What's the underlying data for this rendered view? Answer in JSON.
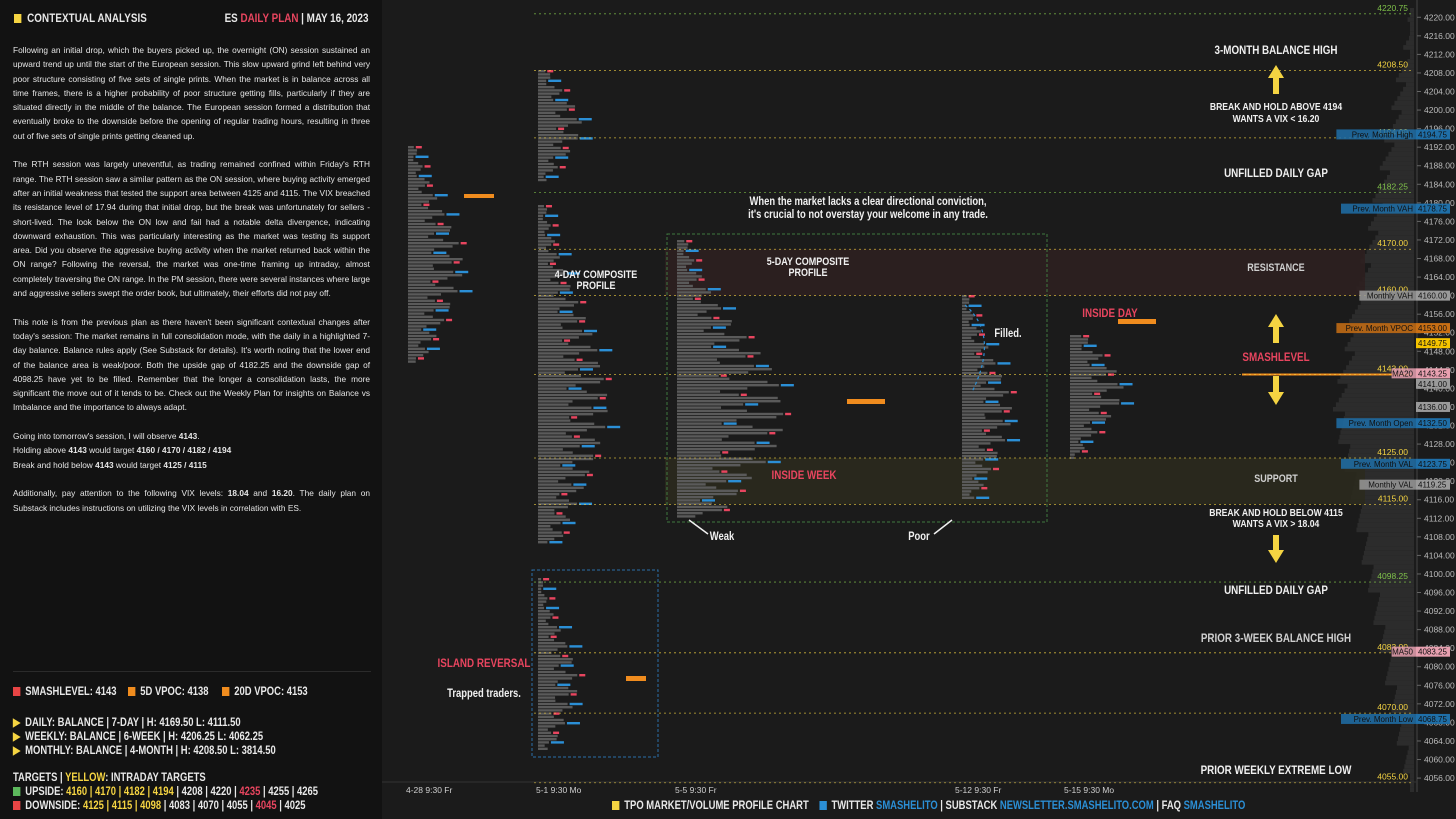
{
  "header": {
    "title": "CONTEXTUAL ANALYSIS",
    "plan_prefix": "ES",
    "plan_label": "DAILY PLAN",
    "date": "MAY 16, 2023"
  },
  "analysis": {
    "p1": "Following an initial drop, which the buyers picked up, the overnight (ON) session sustained an upward trend up until the start of the European session. This slow upward grind left behind very poor structure consisting of five sets of single prints. When the market is in balance across all time frames, there is a higher probability of poor structure getting fills, particularly if they are situated directly in the middle of the balance. The European session formed a distribution that eventually broke to the downside before the opening of regular trading hours, resulting in three out of five sets of single prints getting cleaned up.",
    "p2": "The RTH session was largely uneventful, as trading remained confined within Friday's RTH range. The RTH session saw a similar pattern as the ON session, where buying activity emerged after an initial weakness that tested the support area between 4125 and 4115. The VIX breached its resistance level of 17.94 during that initial drop, but the break was unfortunately for sellers - short-lived. The look below the ON low and fail had a notable delta divergence, indicating downward exhaustion. This was particularly interesting as the market was testing its support area. Did you observe the aggressive buying activity when the market returned back within the ON range? Following the reversal, the market was one-time framing up intraday, almost completely traversing the ON range. In the PM session, there were several instances where large and aggressive sellers swept the order book, but ultimately, their efforts did not pay off.",
    "p3": "This note is from the previous plan as there haven't been significant contextual changes after today's session: The market remains in full consolidation mode, with the daily in a highlighted 7-day balance. Balance rules apply (See Substack for details). It's worth noting that the lower end of the balance area is weak/poor. Both the upside gap of 4182.25 and the downside gap of 4098.25 have yet to be filled. Remember that the longer a consolidation lasts, the more significant the move out of it tends to be. Check out the Weekly Plan for insights on Balance vs Imbalance and the importance to always adapt.",
    "p4a": "Going into tomorrow's session, I will observe ",
    "p4a_val": "4143",
    "p4b1": "Holding above ",
    "p4b_val": "4143",
    "p4b2": " would target ",
    "p4b_targets": "4160 / 4170 / 4182 / 4194",
    "p4c1": "Break and hold below ",
    "p4c_val": "4143",
    "p4c2": " would target ",
    "p4c_targets": "4125 / 4115",
    "p5a": "Additionally, pay attention to the following VIX levels: ",
    "p5_v1": "18.04",
    "p5_and": " and ",
    "p5_v2": "16.20",
    "p5b": ". The daily plan on Substack includes instructions on utilizing the VIX levels in correlation with ES."
  },
  "legend": {
    "smashlevel": "SMASHLEVEL: 4143",
    "vpoc5": "5D VPOC: 4138",
    "vpoc20": "20D VPOC: 4153",
    "smash_color": "#e84545",
    "vpoc_color": "#f08c1e"
  },
  "balance": {
    "daily": "DAILY: BALANCE  |  7-DAY  |  H: 4169.50 L: 4111.50",
    "weekly": "WEEKLY: BALANCE  |  6-WEEK  |  H: 4206.25 L: 4062.25",
    "monthly": "MONTHLY: BALANCE  |  4-MONTH  |  H: 4208.50 L: 3814.50"
  },
  "targets": {
    "title": "TARGETS",
    "yellow_label": "YELLOW",
    "yellow_desc": ": INTRADAY TARGETS",
    "upside_label": "UPSIDE:",
    "upside_yellow": "4160  |  4170  |  4182  |  4194",
    "upside_w1": "4208  |  4220  |",
    "upside_pink": "4235",
    "upside_w2": "|  4255  |  4265",
    "downside_label": "DOWNSIDE:",
    "downside_yellow": "4125  |  4115  |  4098",
    "downside_w1": "|  4083  |  4070  |  4055  |",
    "downside_pink": "4045",
    "downside_w2": "|  4025"
  },
  "footer": {
    "chart_label": "TPO MARKET/VOLUME PROFILE CHART",
    "twitter_label": "TWITTER",
    "twitter_handle": "SMASHELITO",
    "substack_label": "SUBSTACK",
    "substack_url": "NEWSLETTER.SMASHELITO.COM",
    "faq_label": "FAQ",
    "faq_handle": "SMASHELITO"
  },
  "chart_data": {
    "type": "tpo-profile",
    "ylim": [
      4053,
      4222
    ],
    "y_ticks": [
      4056,
      4060,
      4064,
      4068,
      4072,
      4076,
      4080,
      4084,
      4088,
      4092,
      4096,
      4100,
      4104,
      4108,
      4112,
      4116,
      4120,
      4124,
      4128,
      4132,
      4136,
      4140,
      4144,
      4148,
      4152,
      4156,
      4160,
      4164,
      4168,
      4172,
      4176,
      4180,
      4184,
      4188,
      4192,
      4196,
      4200,
      4204,
      4208,
      4212,
      4216,
      4220
    ],
    "x_labels": [
      "4-28  9:30 Fr",
      "5-1  9:30 Mo",
      "5-5  9:30 Fr",
      "5-12  9:30 Fr",
      "5-15  9:30 Mo"
    ],
    "levels": [
      {
        "value": 4220.75,
        "label": "4220.75",
        "color": "#7fc14a"
      },
      {
        "value": 4208.5,
        "label": "4208.50",
        "color": "#f5d442"
      },
      {
        "value": 4194.0,
        "label": "4194.00",
        "color": "#f5d442"
      },
      {
        "value": 4182.25,
        "label": "4182.25",
        "color": "#7fc14a"
      },
      {
        "value": 4170.0,
        "label": "4170.00",
        "color": "#f5d442"
      },
      {
        "value": 4160.0,
        "label": "4160.00",
        "color": "#f5d442"
      },
      {
        "value": 4143.0,
        "label": "4143.00",
        "color": "#f5d442"
      },
      {
        "value": 4125.0,
        "label": "4125.00",
        "color": "#f5d442"
      },
      {
        "value": 4115.0,
        "label": "4115.00",
        "color": "#f5d442"
      },
      {
        "value": 4098.25,
        "label": "4098.25",
        "color": "#7fc14a"
      },
      {
        "value": 4083.0,
        "label": "4083.00",
        "color": "#f5d442"
      },
      {
        "value": 4070.0,
        "label": "4070.00",
        "color": "#f5d442"
      },
      {
        "value": 4055.0,
        "label": "4055.00",
        "color": "#f5d442"
      }
    ],
    "tags": [
      {
        "value": 4194.75,
        "label": "Prev. Month High",
        "value_label": "4194.75",
        "color": "#1f6fa8"
      },
      {
        "value": 4178.75,
        "label": "Prev. Month VAH",
        "value_label": "4178.75",
        "color": "#1f6fa8"
      },
      {
        "value": 4160.0,
        "label": "Monthly VAH",
        "value_label": "4160.00",
        "color": "#9a9a9a"
      },
      {
        "value": 4153.0,
        "label": "Prev. Month VPOC",
        "value_label": "4153.00",
        "color": "#c86f14"
      },
      {
        "value": 4149.75,
        "label": "",
        "value_label": "4149.75",
        "color": "#f5c400"
      },
      {
        "value": 4143.25,
        "label": "MA20",
        "value_label": "4143.25",
        "color": "#e8a0b0"
      },
      {
        "value": 4141.0,
        "label": "",
        "value_label": "4141.00",
        "color": "#9a9a9a"
      },
      {
        "value": 4136.0,
        "label": "",
        "value_label": "4136.00",
        "color": "#9a9a9a"
      },
      {
        "value": 4132.5,
        "label": "Prev. Month Open",
        "value_label": "4132.50",
        "color": "#1f6fa8"
      },
      {
        "value": 4123.75,
        "label": "Prev. Month VAL",
        "value_label": "4123.75",
        "color": "#1f6fa8"
      },
      {
        "value": 4119.25,
        "label": "Monthly VAL",
        "value_label": "4119.25",
        "color": "#9a9a9a"
      },
      {
        "value": 4083.25,
        "label": "MA50",
        "value_label": "4083.25",
        "color": "#e8a0b0"
      },
      {
        "value": 4068.75,
        "label": "Prev. Month Low",
        "value_label": "4068.75",
        "color": "#1f6fa8"
      }
    ],
    "annotations": [
      "3-MONTH BALANCE HIGH",
      "BREAK AND HOLD ABOVE 4194",
      "WANTS A VIX < 16.20",
      "UNFILLED DAILY GAP",
      "RESISTANCE",
      "SMASHLEVEL",
      "SUPPORT",
      "BREAK AND HOLD BELOW 4115",
      "WANTS A VIX > 18.04",
      "UNFILLED DAILY GAP",
      "PRIOR 3-WEEK BALANCE HIGH",
      "PRIOR WEEKLY EXTREME LOW",
      "When the market lacks a clear directional conviction,",
      "it's crucial to not overstay your welcome in any trade.",
      "4-DAY COMPOSITE",
      "PROFILE",
      "5-DAY COMPOSITE",
      "PROFILE",
      "INSIDE WEEK",
      "INSIDE DAY",
      "ISLAND REVERSAL",
      "Trapped traders.",
      "Weak",
      "Poor",
      "Filled."
    ],
    "zones": [
      {
        "label": "RESISTANCE",
        "from": 4160,
        "to": 4170
      },
      {
        "label": "SUPPORT",
        "from": 4115,
        "to": 4125
      }
    ]
  }
}
